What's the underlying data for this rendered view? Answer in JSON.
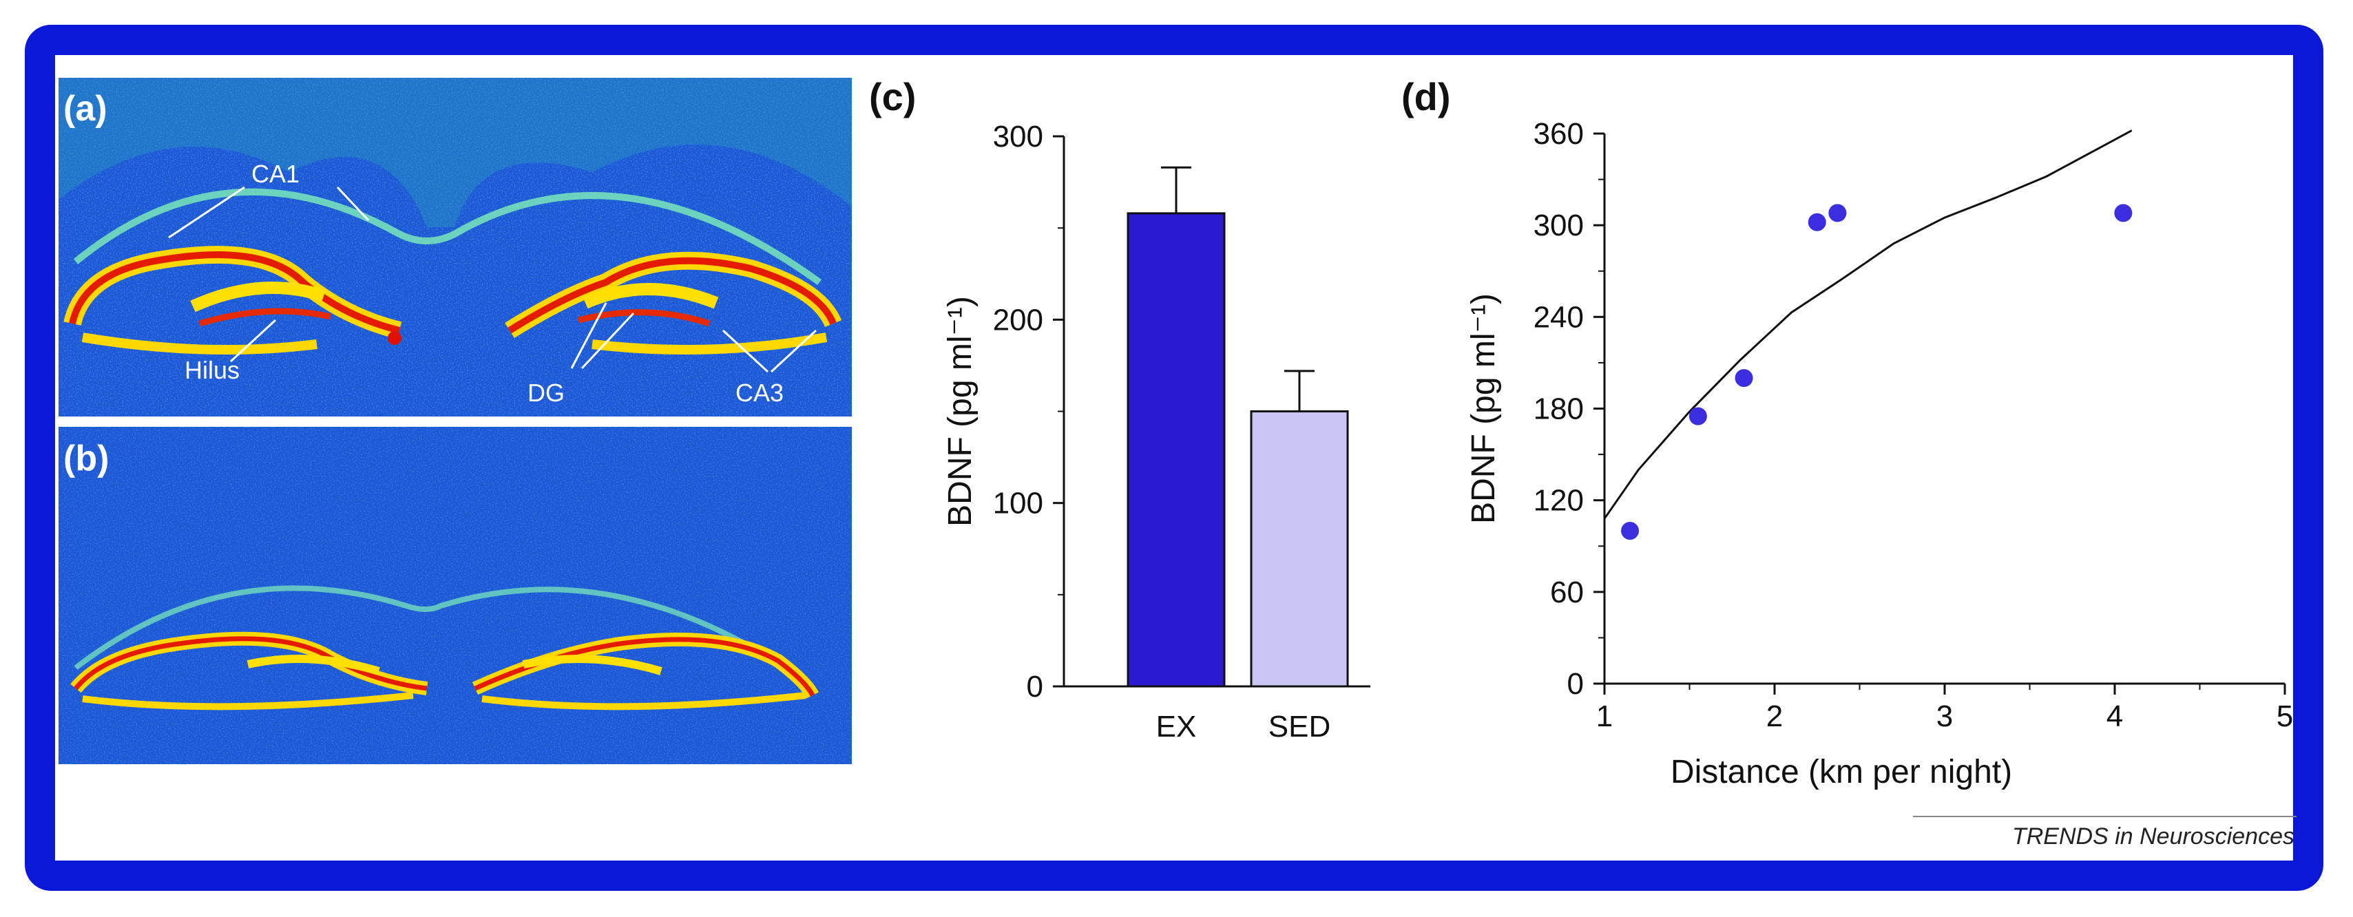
{
  "figure": {
    "panels": {
      "a": {
        "letter": "(a)"
      },
      "b": {
        "letter": "(b)"
      },
      "c": {
        "letter": "(c)"
      },
      "d": {
        "letter": "(d)"
      }
    },
    "micrograph_labels": {
      "ca1": "CA1",
      "hilus": "Hilus",
      "dg": "DG",
      "ca3": "CA3"
    },
    "credit": "TRENDS in Neurosciences"
  },
  "chart_data": [
    {
      "panel": "(c)",
      "type": "bar",
      "categories": [
        "EX",
        "SED"
      ],
      "values": [
        258,
        150
      ],
      "error_upper": [
        283,
        172
      ],
      "colors": [
        "#2a1ad0",
        "#c9c6f4"
      ],
      "ylabel": "BDNF (pg ml⁻¹)",
      "ylim": [
        0,
        300
      ],
      "yticks": [
        "0",
        "100",
        "200",
        "300"
      ]
    },
    {
      "panel": "(d)",
      "type": "scatter",
      "x": [
        1.15,
        1.55,
        1.82,
        2.25,
        2.37,
        4.05
      ],
      "y": [
        100,
        175,
        200,
        302,
        308,
        308
      ],
      "fit_curve": {
        "x": [
          1.0,
          1.2,
          1.5,
          1.8,
          2.1,
          2.4,
          2.7,
          3.0,
          3.3,
          3.6,
          3.9,
          4.1
        ],
        "y": [
          108,
          140,
          178,
          212,
          243,
          265,
          288,
          305,
          318,
          332,
          350,
          362
        ]
      },
      "point_color": "#3a2ee0",
      "xlabel": "Distance (km per night)",
      "ylabel": "BDNF (pg ml⁻¹)",
      "xlim": [
        1,
        5
      ],
      "ylim": [
        0,
        360
      ],
      "xticks": [
        "1",
        "2",
        "3",
        "4",
        "5"
      ],
      "yticks": [
        "0",
        "60",
        "120",
        "180",
        "240",
        "300",
        "360"
      ]
    }
  ]
}
